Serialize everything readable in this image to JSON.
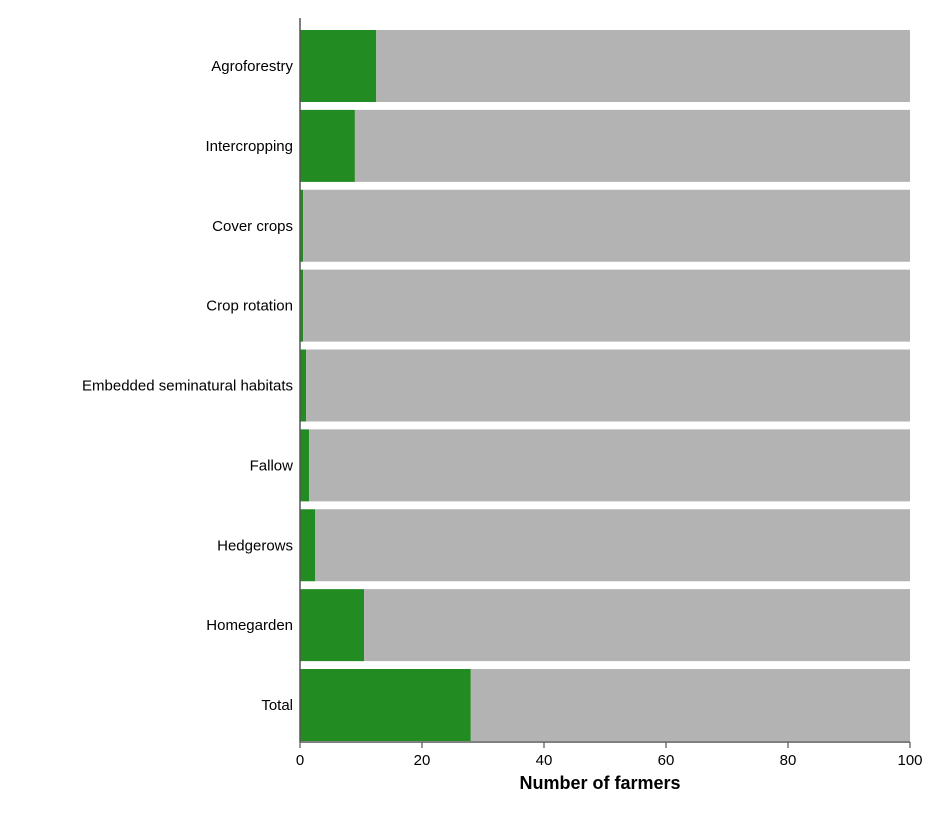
{
  "chart_data": {
    "type": "bar",
    "orientation": "horizontal",
    "stacked": true,
    "categories": [
      "Agroforestry",
      "Intercropping",
      "Cover crops",
      "Crop rotation",
      "Embedded seminatural habitats",
      "Fallow",
      "Hedgerows",
      "Homegarden",
      "Total"
    ],
    "series": [
      {
        "values": [
          12.5,
          9,
          0.5,
          0.5,
          1,
          1.5,
          2.5,
          10.5,
          28
        ],
        "color": "#228b22"
      },
      {
        "values": [
          87.5,
          91,
          99.5,
          99.5,
          99,
          98.5,
          97.5,
          89.5,
          72
        ],
        "color": "#b3b3b3"
      }
    ],
    "xlabel": "Number of farmers",
    "ylabel": "",
    "title": "",
    "xlim": [
      0,
      100
    ],
    "xticks": [
      "0",
      "20",
      "40",
      "60",
      "80",
      "100"
    ],
    "grid": false,
    "legend": "none"
  }
}
